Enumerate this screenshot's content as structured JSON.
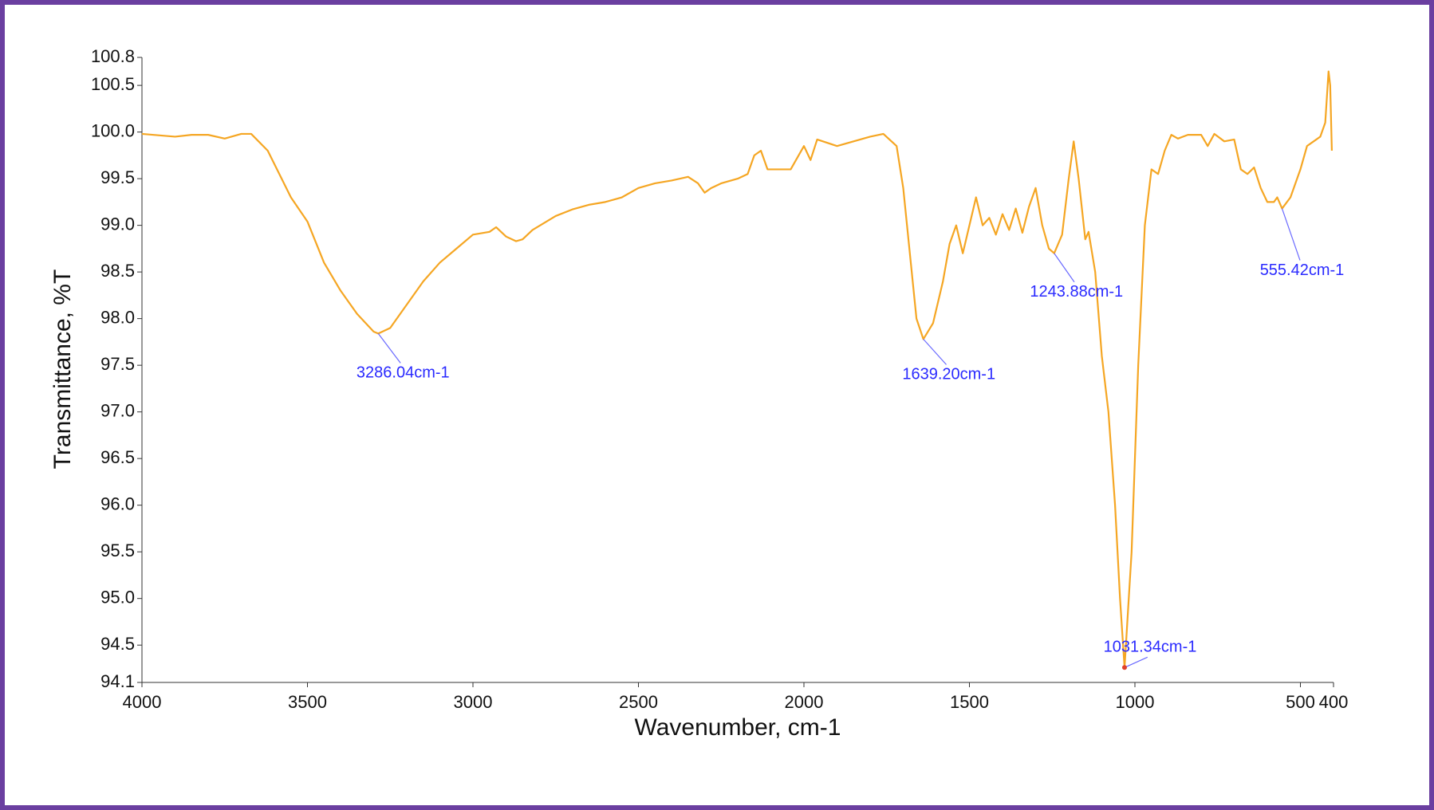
{
  "chart_data": {
    "type": "line",
    "xlabel": "Wavenumber, cm-1",
    "ylabel": "Transmittance, %T",
    "color": "#f5a623",
    "xlim": [
      4000,
      400
    ],
    "xticks": [
      4000,
      3500,
      3000,
      2500,
      2000,
      1500,
      1000,
      500,
      400
    ],
    "ylim": [
      94.1,
      100.8
    ],
    "yticks": [
      94.1,
      94.5,
      {
        "value": 95,
        "label": "95.0"
      },
      95.5,
      {
        "value": 96,
        "label": "96.0"
      },
      96.5,
      {
        "value": 97,
        "label": "97.0"
      },
      97.5,
      {
        "value": 98,
        "label": "98.0"
      },
      98.5,
      {
        "value": 99,
        "label": "99.0"
      },
      99.5,
      {
        "value": 100,
        "label": "100.0"
      },
      100.5,
      100.8
    ],
    "x": [
      4000,
      3900,
      3850,
      3800,
      3750,
      3700,
      3670,
      3620,
      3550,
      3500,
      3450,
      3400,
      3350,
      3300,
      3286.04,
      3250,
      3200,
      3150,
      3100,
      3050,
      3000,
      2950,
      2930,
      2900,
      2870,
      2850,
      2820,
      2750,
      2700,
      2650,
      2600,
      2550,
      2500,
      2450,
      2400,
      2350,
      2320,
      2300,
      2280,
      2250,
      2200,
      2170,
      2150,
      2130,
      2110,
      2070,
      2040,
      2000,
      1980,
      1960,
      1900,
      1850,
      1800,
      1760,
      1720,
      1700,
      1680,
      1660,
      1639.2,
      1610,
      1580,
      1560,
      1540,
      1520,
      1500,
      1480,
      1460,
      1440,
      1420,
      1400,
      1380,
      1360,
      1340,
      1320,
      1300,
      1280,
      1260,
      1243.88,
      1220,
      1200,
      1185,
      1170,
      1150,
      1140,
      1120,
      1100,
      1080,
      1060,
      1045,
      1031.34,
      1010,
      990,
      970,
      950,
      930,
      910,
      890,
      870,
      840,
      800,
      780,
      760,
      730,
      700,
      680,
      660,
      640,
      620,
      600,
      580,
      570,
      555.42,
      530,
      500,
      480,
      460,
      440,
      425,
      415,
      410,
      405
    ],
    "values": [
      99.98,
      99.95,
      99.97,
      99.97,
      99.93,
      99.98,
      99.98,
      99.8,
      99.3,
      99.04,
      98.6,
      98.3,
      98.05,
      97.86,
      97.84,
      97.9,
      98.15,
      98.4,
      98.6,
      98.75,
      98.9,
      98.93,
      98.98,
      98.88,
      98.83,
      98.85,
      98.95,
      99.1,
      99.17,
      99.22,
      99.25,
      99.3,
      99.4,
      99.45,
      99.48,
      99.52,
      99.45,
      99.35,
      99.4,
      99.45,
      99.5,
      99.55,
      99.75,
      99.8,
      99.6,
      99.6,
      99.6,
      99.85,
      99.7,
      99.92,
      99.85,
      99.9,
      99.95,
      99.98,
      99.85,
      99.4,
      98.7,
      98.0,
      97.78,
      97.95,
      98.4,
      98.8,
      99.0,
      98.7,
      99.0,
      99.3,
      99.0,
      99.08,
      98.9,
      99.12,
      98.95,
      99.18,
      98.92,
      99.2,
      99.4,
      99.0,
      98.75,
      98.7,
      98.9,
      99.5,
      99.9,
      99.5,
      98.85,
      98.93,
      98.5,
      97.6,
      97.0,
      96.0,
      95.0,
      94.26,
      95.5,
      97.5,
      99.0,
      99.6,
      99.55,
      99.8,
      99.97,
      99.93,
      99.97,
      99.97,
      99.85,
      99.98,
      99.9,
      99.92,
      99.6,
      99.55,
      99.62,
      99.4,
      99.25,
      99.25,
      99.3,
      99.18,
      99.3,
      99.6,
      99.85,
      99.9,
      99.95,
      100.1,
      100.65,
      100.5,
      99.8
    ],
    "annotations": [
      {
        "text": "3286.04cm-1",
        "x": 3286.04,
        "y": 97.84
      },
      {
        "text": "1639.20cm-1",
        "x": 1639.2,
        "y": 97.78
      },
      {
        "text": "1243.88cm-1",
        "x": 1243.88,
        "y": 98.7
      },
      {
        "text": "1031.34cm-1",
        "x": 1031.34,
        "y": 94.26
      },
      {
        "text": "555.42cm-1",
        "x": 555.42,
        "y": 99.18
      }
    ]
  }
}
